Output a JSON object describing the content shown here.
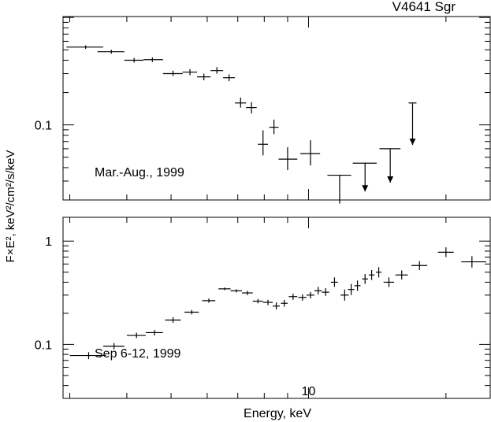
{
  "chart_data": {
    "type": "scatter",
    "title": "V4641 Sgr",
    "xlabel": "Energy, keV",
    "ylabel": "F×E², keV²/cm²/s/keV",
    "x_scale": "log",
    "xlim": [
      2.9,
      25
    ],
    "x_tick_labels": [
      {
        "value": 10,
        "label": "10"
      }
    ],
    "panels": [
      {
        "name": "top",
        "annotation": "Mar.-Aug., 1999",
        "y_scale": "log",
        "ylim": [
          0.02,
          1.02
        ],
        "y_tick_labels": [
          {
            "value": 0.1,
            "label": "0.1"
          }
        ],
        "points": [
          {
            "x": 3.25,
            "xlo": 2.95,
            "xhi": 3.55,
            "y": 0.53,
            "ylo": 0.51,
            "yhi": 0.55
          },
          {
            "x": 3.7,
            "xlo": 3.45,
            "xhi": 3.95,
            "y": 0.48,
            "ylo": 0.46,
            "yhi": 0.5
          },
          {
            "x": 4.15,
            "xlo": 3.95,
            "xhi": 4.35,
            "y": 0.4,
            "ylo": 0.38,
            "yhi": 0.42
          },
          {
            "x": 4.55,
            "xlo": 4.35,
            "xhi": 4.8,
            "y": 0.405,
            "ylo": 0.385,
            "yhi": 0.425
          },
          {
            "x": 5.05,
            "xlo": 4.8,
            "xhi": 5.3,
            "y": 0.3,
            "ylo": 0.285,
            "yhi": 0.32
          },
          {
            "x": 5.5,
            "xlo": 5.3,
            "xhi": 5.7,
            "y": 0.31,
            "ylo": 0.29,
            "yhi": 0.33
          },
          {
            "x": 5.9,
            "xlo": 5.7,
            "xhi": 6.1,
            "y": 0.28,
            "ylo": 0.26,
            "yhi": 0.3
          },
          {
            "x": 6.3,
            "xlo": 6.1,
            "xhi": 6.5,
            "y": 0.32,
            "ylo": 0.3,
            "yhi": 0.345
          },
          {
            "x": 6.7,
            "xlo": 6.5,
            "xhi": 6.9,
            "y": 0.275,
            "ylo": 0.255,
            "yhi": 0.295
          },
          {
            "x": 7.1,
            "xlo": 6.9,
            "xhi": 7.3,
            "y": 0.16,
            "ylo": 0.145,
            "yhi": 0.18
          },
          {
            "x": 7.5,
            "xlo": 7.3,
            "xhi": 7.7,
            "y": 0.145,
            "ylo": 0.128,
            "yhi": 0.163
          },
          {
            "x": 7.95,
            "xlo": 7.75,
            "xhi": 8.15,
            "y": 0.066,
            "ylo": 0.052,
            "yhi": 0.089
          },
          {
            "x": 8.4,
            "xlo": 8.2,
            "xhi": 8.6,
            "y": 0.095,
            "ylo": 0.082,
            "yhi": 0.112
          },
          {
            "x": 9.0,
            "xlo": 8.6,
            "xhi": 9.45,
            "y": 0.048,
            "ylo": 0.038,
            "yhi": 0.062
          },
          {
            "x": 10.1,
            "xlo": 9.6,
            "xhi": 10.6,
            "y": 0.054,
            "ylo": 0.042,
            "yhi": 0.072
          },
          {
            "x": 11.7,
            "xlo": 11.0,
            "xhi": 12.4,
            "y": 0.034,
            "ylo": 0.0185,
            "yhi": 0.034
          },
          {
            "x": 13.3,
            "xlo": 12.5,
            "xhi": 14.1,
            "y": 0.044,
            "upper_limit": true,
            "arrow_to": 0.024
          },
          {
            "x": 15.1,
            "xlo": 14.3,
            "xhi": 15.9,
            "y": 0.06,
            "upper_limit": true,
            "arrow_to": 0.029
          },
          {
            "x": 16.9,
            "upper_limit": true,
            "ytop": 0.16,
            "arrow_to": 0.065
          }
        ]
      },
      {
        "name": "bottom",
        "annotation": "Sep 6-12, 1999",
        "y_scale": "log",
        "ylim": [
          0.03,
          1.7
        ],
        "y_tick_labels": [
          {
            "value": 0.1,
            "label": "0.1"
          },
          {
            "value": 1,
            "label": "1"
          }
        ],
        "points": [
          {
            "x": 3.3,
            "xlo": 3.0,
            "xhi": 3.6,
            "y": 0.078,
            "ylo": 0.072,
            "yhi": 0.084
          },
          {
            "x": 3.75,
            "xlo": 3.55,
            "xhi": 3.95,
            "y": 0.096,
            "ylo": 0.09,
            "yhi": 0.103
          },
          {
            "x": 4.2,
            "xlo": 4.0,
            "xhi": 4.4,
            "y": 0.122,
            "ylo": 0.115,
            "yhi": 0.13
          },
          {
            "x": 4.6,
            "xlo": 4.4,
            "xhi": 4.8,
            "y": 0.13,
            "ylo": 0.122,
            "yhi": 0.138
          },
          {
            "x": 5.05,
            "xlo": 4.85,
            "xhi": 5.25,
            "y": 0.172,
            "ylo": 0.162,
            "yhi": 0.183
          },
          {
            "x": 5.55,
            "xlo": 5.35,
            "xhi": 5.75,
            "y": 0.205,
            "ylo": 0.195,
            "yhi": 0.215
          },
          {
            "x": 6.05,
            "xlo": 5.85,
            "xhi": 6.25,
            "y": 0.265,
            "ylo": 0.253,
            "yhi": 0.278
          },
          {
            "x": 6.55,
            "xlo": 6.35,
            "xhi": 6.75,
            "y": 0.345,
            "ylo": 0.335,
            "yhi": 0.355
          },
          {
            "x": 6.95,
            "xlo": 6.75,
            "xhi": 7.15,
            "y": 0.33,
            "ylo": 0.318,
            "yhi": 0.342
          },
          {
            "x": 7.35,
            "xlo": 7.15,
            "xhi": 7.55,
            "y": 0.315,
            "ylo": 0.3,
            "yhi": 0.33
          },
          {
            "x": 7.75,
            "xlo": 7.55,
            "xhi": 7.95,
            "y": 0.262,
            "ylo": 0.25,
            "yhi": 0.275
          },
          {
            "x": 8.15,
            "xlo": 7.95,
            "xhi": 8.35,
            "y": 0.255,
            "ylo": 0.24,
            "yhi": 0.27
          },
          {
            "x": 8.5,
            "xlo": 8.35,
            "xhi": 8.65,
            "y": 0.235,
            "ylo": 0.218,
            "yhi": 0.255
          },
          {
            "x": 8.85,
            "xlo": 8.7,
            "xhi": 9.0,
            "y": 0.25,
            "ylo": 0.232,
            "yhi": 0.27
          },
          {
            "x": 9.25,
            "xlo": 9.05,
            "xhi": 9.45,
            "y": 0.29,
            "ylo": 0.27,
            "yhi": 0.31
          },
          {
            "x": 9.7,
            "xlo": 9.5,
            "xhi": 9.9,
            "y": 0.285,
            "ylo": 0.265,
            "yhi": 0.305
          },
          {
            "x": 10.1,
            "xlo": 9.9,
            "xhi": 10.3,
            "y": 0.3,
            "ylo": 0.278,
            "yhi": 0.322
          },
          {
            "x": 10.5,
            "xlo": 10.3,
            "xhi": 10.7,
            "y": 0.33,
            "ylo": 0.305,
            "yhi": 0.36
          },
          {
            "x": 10.9,
            "xlo": 10.7,
            "xhi": 11.1,
            "y": 0.32,
            "ylo": 0.295,
            "yhi": 0.35
          },
          {
            "x": 11.4,
            "xlo": 11.2,
            "xhi": 11.6,
            "y": 0.4,
            "ylo": 0.36,
            "yhi": 0.445
          },
          {
            "x": 12.0,
            "xlo": 11.75,
            "xhi": 12.25,
            "y": 0.3,
            "ylo": 0.265,
            "yhi": 0.34
          },
          {
            "x": 12.4,
            "xlo": 12.2,
            "xhi": 12.6,
            "y": 0.34,
            "ylo": 0.3,
            "yhi": 0.385
          },
          {
            "x": 12.8,
            "xlo": 12.6,
            "xhi": 13.0,
            "y": 0.37,
            "ylo": 0.33,
            "yhi": 0.415
          },
          {
            "x": 13.3,
            "xlo": 13.1,
            "xhi": 13.5,
            "y": 0.43,
            "ylo": 0.385,
            "yhi": 0.48
          },
          {
            "x": 13.75,
            "xlo": 13.55,
            "xhi": 13.95,
            "y": 0.47,
            "ylo": 0.42,
            "yhi": 0.525
          },
          {
            "x": 14.25,
            "xlo": 14.05,
            "xhi": 14.45,
            "y": 0.5,
            "ylo": 0.445,
            "yhi": 0.56
          },
          {
            "x": 15.0,
            "xlo": 14.6,
            "xhi": 15.4,
            "y": 0.4,
            "ylo": 0.36,
            "yhi": 0.445
          },
          {
            "x": 16.0,
            "xlo": 15.5,
            "xhi": 16.5,
            "y": 0.47,
            "ylo": 0.425,
            "yhi": 0.52
          },
          {
            "x": 17.5,
            "xlo": 16.8,
            "xhi": 18.2,
            "y": 0.58,
            "ylo": 0.525,
            "yhi": 0.64
          },
          {
            "x": 20.0,
            "xlo": 19.2,
            "xhi": 20.8,
            "y": 0.78,
            "ylo": 0.7,
            "yhi": 0.87
          },
          {
            "x": 22.8,
            "xlo": 21.6,
            "xhi": 24.5,
            "y": 0.63,
            "ylo": 0.555,
            "yhi": 0.715
          }
        ]
      }
    ]
  }
}
